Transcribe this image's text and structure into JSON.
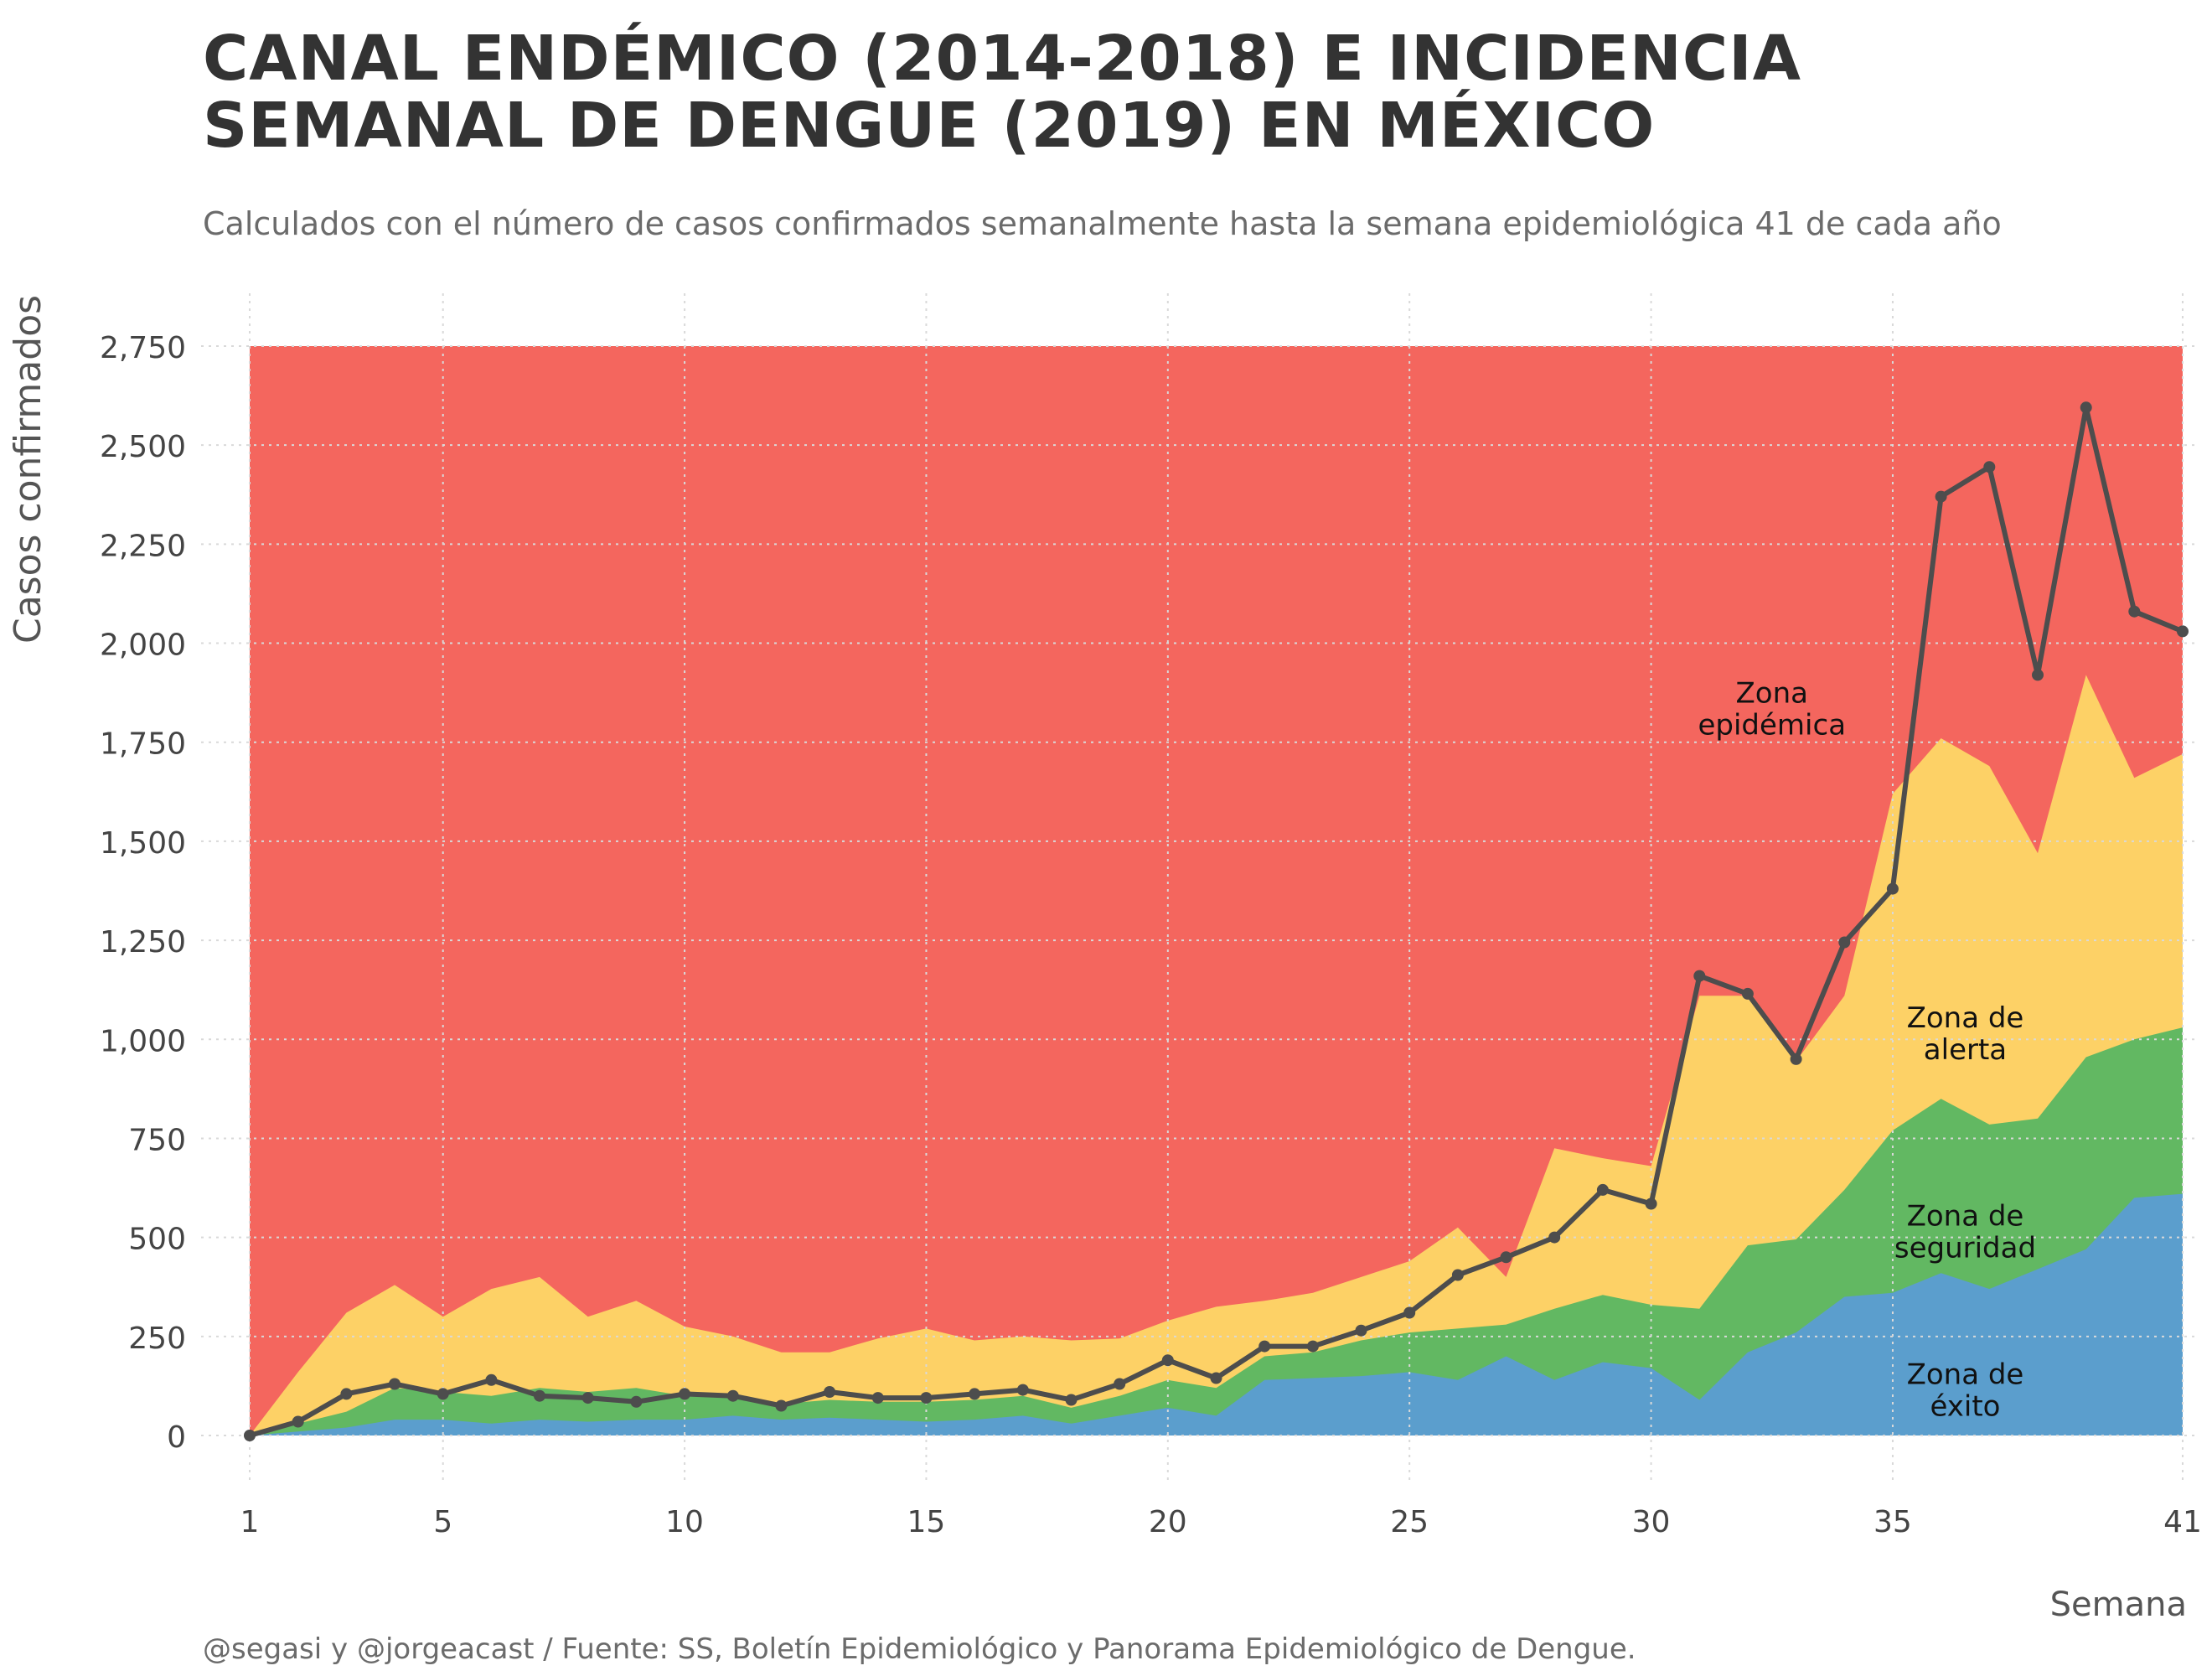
{
  "chart_data": {
    "type": "area",
    "title": "CANAL ENDÉMICO (2014-2018) E INCIDENCIA SEMANAL DE DENGUE (2019) EN MÉXICO",
    "subtitle": "Calculados con el número de casos confirmados semanalmente hasta la semana epidemiológica 41 de cada año",
    "caption": "@segasi y @jorgeacast / Fuente: SS, Boletín Epidemiológico y Panorama Epidemiológico de Dengue.",
    "xlabel": "Semana",
    "ylabel": "Casos confirmados",
    "xlim": [
      1,
      41
    ],
    "ylim": [
      0,
      2750
    ],
    "xticks": [
      1,
      5,
      10,
      15,
      20,
      25,
      30,
      35,
      41
    ],
    "yticks": [
      0,
      250,
      500,
      750,
      1000,
      1250,
      1500,
      1750,
      2000,
      2250,
      2500,
      2750
    ],
    "ytick_labels": [
      "0",
      "250",
      "500",
      "750",
      "1,000",
      "1,250",
      "1,500",
      "1,750",
      "2,000",
      "2,250",
      "2,500",
      "2,750"
    ],
    "x": [
      1,
      2,
      3,
      4,
      5,
      6,
      7,
      8,
      9,
      10,
      11,
      12,
      13,
      14,
      15,
      16,
      17,
      18,
      19,
      20,
      21,
      22,
      23,
      24,
      25,
      26,
      27,
      28,
      29,
      30,
      31,
      32,
      33,
      34,
      35,
      36,
      37,
      38,
      39,
      40,
      41
    ],
    "zones": [
      {
        "name": "Zona de éxito",
        "color": "#5b9ecd",
        "values": [
          0,
          10,
          20,
          40,
          40,
          30,
          40,
          35,
          40,
          40,
          50,
          40,
          45,
          40,
          35,
          40,
          50,
          30,
          50,
          70,
          50,
          140,
          145,
          150,
          160,
          140,
          200,
          140,
          185,
          170,
          90,
          210,
          260,
          350,
          360,
          410,
          370,
          420,
          470,
          600,
          610
        ]
      },
      {
        "name": "Zona de seguridad",
        "color": "#62b862",
        "values": [
          0,
          30,
          60,
          120,
          110,
          100,
          120,
          110,
          120,
          100,
          100,
          80,
          90,
          85,
          85,
          90,
          100,
          70,
          100,
          140,
          120,
          200,
          210,
          240,
          260,
          270,
          280,
          320,
          355,
          330,
          320,
          480,
          495,
          620,
          770,
          850,
          785,
          800,
          955,
          1000,
          1030
        ]
      },
      {
        "name": "Zona de alerta",
        "color": "#fdd166",
        "values": [
          0,
          160,
          310,
          380,
          300,
          370,
          400,
          300,
          340,
          275,
          250,
          210,
          210,
          245,
          270,
          240,
          250,
          240,
          245,
          290,
          325,
          340,
          360,
          400,
          440,
          525,
          400,
          725,
          700,
          680,
          1110,
          1110,
          945,
          1110,
          1620,
          1760,
          1690,
          1470,
          1920,
          1660,
          1720
        ]
      },
      {
        "name": "Zona epidémica",
        "color": "#f4665e",
        "values": [
          2750,
          2750,
          2750,
          2750,
          2750,
          2750,
          2750,
          2750,
          2750,
          2750,
          2750,
          2750,
          2750,
          2750,
          2750,
          2750,
          2750,
          2750,
          2750,
          2750,
          2750,
          2750,
          2750,
          2750,
          2750,
          2750,
          2750,
          2750,
          2750,
          2750,
          2750,
          2750,
          2750,
          2750,
          2750,
          2750,
          2750,
          2750,
          2750,
          2750,
          2750
        ]
      }
    ],
    "series": [
      {
        "name": "",
        "color": "#4d4d4d",
        "values": [
          0,
          35,
          105,
          130,
          105,
          140,
          100,
          95,
          85,
          105,
          100,
          75,
          110,
          95,
          95,
          105,
          115,
          90,
          130,
          190,
          145,
          225,
          225,
          265,
          310,
          405,
          450,
          500,
          620,
          585,
          1160,
          1115,
          950,
          1245,
          1380,
          2370,
          2445,
          1920,
          2595,
          2080,
          2030
        ]
      }
    ],
    "annotations": [
      {
        "line1": "Zona",
        "line2": "epidémica",
        "x": 32.5,
        "y": 1850
      },
      {
        "line1": "Zona de",
        "line2": "alerta",
        "x": 36.5,
        "y": 1030
      },
      {
        "line1": "Zona de",
        "line2": "seguridad",
        "x": 36.5,
        "y": 530
      },
      {
        "line1": "Zona de",
        "line2": "éxito",
        "x": 36.5,
        "y": 130
      }
    ],
    "grid": true
  }
}
